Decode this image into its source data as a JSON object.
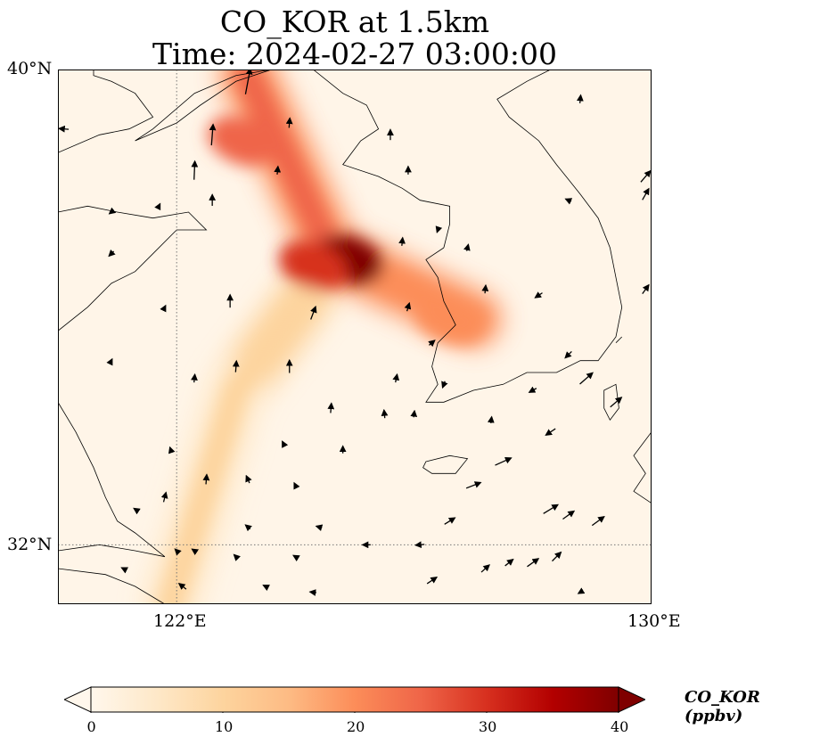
{
  "title": {
    "line1": "CO_KOR at 1.5km",
    "line2": "Time: 2024-02-27 03:00:00"
  },
  "map": {
    "extent": {
      "lon_min": 120,
      "lon_max": 130,
      "lat_min": 31,
      "lat_max": 40
    },
    "gridlines": {
      "lon": [
        122
      ],
      "lat": [
        32
      ]
    },
    "lat_labels": {
      "north": "40°N",
      "south": "32°N"
    },
    "lon_labels": {
      "west": "122°E",
      "east": "130°E"
    }
  },
  "colorbar": {
    "label": "CO_KOR (ppbv)",
    "min": 0,
    "max": 40,
    "ticks": [
      "0",
      "10",
      "20",
      "30",
      "40"
    ],
    "extend": "both",
    "colormap": "OrRd",
    "colors": [
      "#fff7ec",
      "#fee8c8",
      "#fdd49e",
      "#fdbb84",
      "#fc8d59",
      "#ef6548",
      "#d7301f",
      "#b30000",
      "#7f0000"
    ]
  },
  "plume_segments": [
    {
      "lon1": 123.2,
      "lat1": 39.9,
      "lon2": 124.6,
      "lat2": 36.9,
      "ppbv": 24
    },
    {
      "lon1": 124.6,
      "lat1": 36.9,
      "lon2": 127.0,
      "lat2": 35.8,
      "ppbv": 22
    },
    {
      "lon1": 124.2,
      "lat1": 36.2,
      "lon2": 123.0,
      "lat2": 34.6,
      "ppbv": 12
    },
    {
      "lon1": 123.0,
      "lat1": 34.6,
      "lon2": 121.9,
      "lat2": 31.0,
      "ppbv": 9
    }
  ],
  "plume_hotspots": [
    {
      "lon": 124.9,
      "lat": 36.8,
      "ppbv": 38
    },
    {
      "lon": 124.3,
      "lat": 36.7,
      "ppbv": 30
    },
    {
      "lon": 123.1,
      "lat": 38.8,
      "ppbv": 26
    },
    {
      "lon": 126.6,
      "lat": 35.8,
      "ppbv": 21
    }
  ],
  "wind_vectors": [
    {
      "lon": 123.2,
      "lat": 39.8,
      "u": 0.6,
      "v": 3.2
    },
    {
      "lon": 128.8,
      "lat": 39.5,
      "u": 0.1,
      "v": 1.0
    },
    {
      "lon": 120.1,
      "lat": 39.0,
      "u": -1.2,
      "v": 0.1
    },
    {
      "lon": 122.6,
      "lat": 38.9,
      "u": 0.2,
      "v": 2.6
    },
    {
      "lon": 123.9,
      "lat": 39.1,
      "u": 0.1,
      "v": 1.2
    },
    {
      "lon": 125.6,
      "lat": 38.9,
      "u": 0.0,
      "v": 1.3
    },
    {
      "lon": 122.3,
      "lat": 38.3,
      "u": 0.1,
      "v": 2.3
    },
    {
      "lon": 123.7,
      "lat": 38.3,
      "u": 0.1,
      "v": 1.0
    },
    {
      "lon": 125.9,
      "lat": 38.3,
      "u": 0.0,
      "v": 1.0
    },
    {
      "lon": 129.9,
      "lat": 38.2,
      "u": 1.2,
      "v": 1.4
    },
    {
      "lon": 129.9,
      "lat": 37.9,
      "u": 0.8,
      "v": 1.4
    },
    {
      "lon": 128.6,
      "lat": 37.8,
      "u": -0.7,
      "v": 0.3
    },
    {
      "lon": 120.9,
      "lat": 37.6,
      "u": -0.5,
      "v": -0.4
    },
    {
      "lon": 121.7,
      "lat": 37.7,
      "u": 0.3,
      "v": 0.6
    },
    {
      "lon": 122.6,
      "lat": 37.8,
      "u": 0.0,
      "v": 1.4
    },
    {
      "lon": 126.4,
      "lat": 37.3,
      "u": -0.2,
      "v": -0.6
    },
    {
      "lon": 125.8,
      "lat": 37.1,
      "u": 0.1,
      "v": 1.0
    },
    {
      "lon": 126.9,
      "lat": 37.0,
      "u": 0.2,
      "v": 0.8
    },
    {
      "lon": 120.9,
      "lat": 36.9,
      "u": -0.6,
      "v": -0.6
    },
    {
      "lon": 127.2,
      "lat": 36.3,
      "u": 0.1,
      "v": 1.0
    },
    {
      "lon": 128.1,
      "lat": 36.2,
      "u": -0.9,
      "v": -0.6
    },
    {
      "lon": 129.9,
      "lat": 36.3,
      "u": 0.8,
      "v": 1.1
    },
    {
      "lon": 121.8,
      "lat": 36.0,
      "u": 0.2,
      "v": 0.4
    },
    {
      "lon": 122.9,
      "lat": 36.1,
      "u": 0.0,
      "v": 1.6
    },
    {
      "lon": 124.3,
      "lat": 35.9,
      "u": 0.6,
      "v": 1.6
    },
    {
      "lon": 125.9,
      "lat": 36.0,
      "u": 0.3,
      "v": 1.0
    },
    {
      "lon": 126.3,
      "lat": 35.4,
      "u": 0.7,
      "v": 0.6
    },
    {
      "lon": 128.6,
      "lat": 35.2,
      "u": -0.8,
      "v": -0.8
    },
    {
      "lon": 120.9,
      "lat": 35.1,
      "u": 0.2,
      "v": 0.4
    },
    {
      "lon": 123.0,
      "lat": 35.0,
      "u": 0.1,
      "v": 1.4
    },
    {
      "lon": 123.9,
      "lat": 35.0,
      "u": 0.0,
      "v": 1.6
    },
    {
      "lon": 125.7,
      "lat": 34.8,
      "u": 0.2,
      "v": 1.0
    },
    {
      "lon": 128.9,
      "lat": 34.8,
      "u": 1.6,
      "v": 1.4
    },
    {
      "lon": 129.4,
      "lat": 34.4,
      "u": 1.4,
      "v": 1.2
    },
    {
      "lon": 122.3,
      "lat": 34.8,
      "u": 0.1,
      "v": 1.0
    },
    {
      "lon": 126.5,
      "lat": 34.7,
      "u": -0.3,
      "v": -0.8
    },
    {
      "lon": 128.0,
      "lat": 34.6,
      "u": -0.9,
      "v": -0.5
    },
    {
      "lon": 124.6,
      "lat": 34.3,
      "u": 0.1,
      "v": 1.2
    },
    {
      "lon": 125.5,
      "lat": 34.2,
      "u": -0.1,
      "v": 1.0
    },
    {
      "lon": 126.0,
      "lat": 34.2,
      "u": 0.1,
      "v": 0.8
    },
    {
      "lon": 127.3,
      "lat": 34.1,
      "u": 0.1,
      "v": 0.8
    },
    {
      "lon": 128.3,
      "lat": 33.9,
      "u": -1.2,
      "v": -0.8
    },
    {
      "lon": 121.9,
      "lat": 33.6,
      "u": -0.2,
      "v": 0.6
    },
    {
      "lon": 123.8,
      "lat": 33.7,
      "u": -0.3,
      "v": 0.6
    },
    {
      "lon": 124.8,
      "lat": 33.6,
      "u": 0.0,
      "v": 0.9
    },
    {
      "lon": 127.5,
      "lat": 33.4,
      "u": 2.0,
      "v": 0.9
    },
    {
      "lon": 122.5,
      "lat": 33.1,
      "u": 0.1,
      "v": 1.2
    },
    {
      "lon": 123.2,
      "lat": 33.1,
      "u": -0.4,
      "v": 0.9
    },
    {
      "lon": 124.0,
      "lat": 33.0,
      "u": -0.3,
      "v": 0.6
    },
    {
      "lon": 127.0,
      "lat": 33.0,
      "u": 1.8,
      "v": 0.7
    },
    {
      "lon": 128.3,
      "lat": 32.6,
      "u": 1.8,
      "v": 1.1
    },
    {
      "lon": 128.6,
      "lat": 32.5,
      "u": 1.4,
      "v": 1.0
    },
    {
      "lon": 129.1,
      "lat": 32.4,
      "u": 1.5,
      "v": 1.1
    },
    {
      "lon": 121.8,
      "lat": 32.8,
      "u": 0.3,
      "v": 1.2
    },
    {
      "lon": 123.2,
      "lat": 32.3,
      "u": -0.6,
      "v": 0.5
    },
    {
      "lon": 124.4,
      "lat": 32.3,
      "u": -0.7,
      "v": 0.2
    },
    {
      "lon": 126.6,
      "lat": 32.4,
      "u": 1.3,
      "v": 0.8
    },
    {
      "lon": 121.3,
      "lat": 32.6,
      "u": -0.3,
      "v": 0.2
    },
    {
      "lon": 125.2,
      "lat": 32.0,
      "u": -1.0,
      "v": 0.0
    },
    {
      "lon": 126.1,
      "lat": 32.0,
      "u": -1.1,
      "v": -0.1
    },
    {
      "lon": 122.3,
      "lat": 31.9,
      "u": -0.6,
      "v": 0.4
    },
    {
      "lon": 122.0,
      "lat": 31.9,
      "u": -0.4,
      "v": 0.4
    },
    {
      "lon": 123.0,
      "lat": 31.8,
      "u": -0.5,
      "v": 0.5
    },
    {
      "lon": 124.0,
      "lat": 31.8,
      "u": -0.5,
      "v": 0.3
    },
    {
      "lon": 127.6,
      "lat": 31.7,
      "u": 1.0,
      "v": 0.8
    },
    {
      "lon": 128.0,
      "lat": 31.7,
      "u": 1.4,
      "v": 1.0
    },
    {
      "lon": 128.4,
      "lat": 31.8,
      "u": 1.1,
      "v": 1.1
    },
    {
      "lon": 121.1,
      "lat": 31.6,
      "u": -0.4,
      "v": 0.2
    },
    {
      "lon": 126.3,
      "lat": 31.4,
      "u": 1.2,
      "v": 0.8
    },
    {
      "lon": 122.1,
      "lat": 31.3,
      "u": -0.9,
      "v": 0.7
    },
    {
      "lon": 123.5,
      "lat": 31.3,
      "u": -0.6,
      "v": 0.3
    },
    {
      "lon": 127.2,
      "lat": 31.6,
      "u": 1.0,
      "v": 0.9
    },
    {
      "lon": 124.3,
      "lat": 31.2,
      "u": -0.8,
      "v": 0.1
    },
    {
      "lon": 128.8,
      "lat": 31.2,
      "u": -0.5,
      "v": -0.3
    }
  ],
  "coastlines": [
    {
      "name": "china-north",
      "points": [
        [
          120,
          35.6
        ],
        [
          120.5,
          36.0
        ],
        [
          120.9,
          36.4
        ],
        [
          121.3,
          36.6
        ],
        [
          121.6,
          36.9
        ],
        [
          122.0,
          37.3
        ],
        [
          122.5,
          37.3
        ],
        [
          122.2,
          37.6
        ],
        [
          121.6,
          37.5
        ],
        [
          121.0,
          37.6
        ],
        [
          120.5,
          37.7
        ],
        [
          120,
          37.6
        ]
      ]
    },
    {
      "name": "china-bohai",
      "points": [
        [
          120,
          38.6
        ],
        [
          120.7,
          38.9
        ],
        [
          121.2,
          39.0
        ],
        [
          121.6,
          39.2
        ],
        [
          121.3,
          39.6
        ],
        [
          120.9,
          39.8
        ],
        [
          120.6,
          39.9
        ],
        [
          120.6,
          40.0
        ]
      ]
    },
    {
      "name": "liaodong",
      "points": [
        [
          123.6,
          40.0
        ],
        [
          123.0,
          39.8
        ],
        [
          122.4,
          39.4
        ],
        [
          122.0,
          39.1
        ],
        [
          121.3,
          38.8
        ],
        [
          121.6,
          39.0
        ],
        [
          122.3,
          39.6
        ],
        [
          123.0,
          39.9
        ],
        [
          123.6,
          40.0
        ]
      ]
    },
    {
      "name": "korea-nw",
      "points": [
        [
          124.3,
          40.0
        ],
        [
          124.8,
          39.6
        ],
        [
          125.2,
          39.4
        ],
        [
          125.4,
          39.0
        ],
        [
          125.1,
          38.8
        ],
        [
          124.8,
          38.4
        ],
        [
          125.4,
          38.2
        ],
        [
          125.8,
          38.0
        ],
        [
          126.1,
          37.8
        ],
        [
          126.6,
          37.7
        ],
        [
          126.6,
          37.4
        ],
        [
          126.5,
          37.0
        ]
      ]
    },
    {
      "name": "korea-west",
      "points": [
        [
          126.5,
          37.0
        ],
        [
          126.2,
          36.8
        ],
        [
          126.4,
          36.5
        ],
        [
          126.5,
          36.1
        ],
        [
          126.7,
          35.7
        ],
        [
          126.4,
          35.4
        ],
        [
          126.3,
          35.0
        ],
        [
          126.4,
          34.7
        ],
        [
          126.2,
          34.4
        ],
        [
          126.5,
          34.4
        ],
        [
          127.0,
          34.6
        ],
        [
          127.5,
          34.7
        ],
        [
          127.9,
          34.9
        ],
        [
          128.4,
          34.9
        ],
        [
          128.8,
          35.1
        ],
        [
          129.1,
          35.1
        ],
        [
          129.4,
          35.5
        ],
        [
          129.5,
          36.0
        ],
        [
          129.4,
          36.5
        ],
        [
          129.3,
          37.0
        ],
        [
          129.1,
          37.5
        ],
        [
          128.8,
          37.9
        ],
        [
          128.4,
          38.4
        ],
        [
          128.1,
          38.8
        ],
        [
          127.6,
          39.2
        ],
        [
          127.4,
          39.5
        ],
        [
          127.9,
          39.8
        ],
        [
          128.3,
          40.0
        ]
      ]
    },
    {
      "name": "korea-se-coast",
      "points": [
        [
          129.4,
          35.4
        ],
        [
          129.5,
          35.5
        ]
      ]
    },
    {
      "name": "jeju",
      "closed": true,
      "points": [
        [
          126.2,
          33.4
        ],
        [
          126.6,
          33.5
        ],
        [
          126.9,
          33.45
        ],
        [
          126.7,
          33.2
        ],
        [
          126.3,
          33.2
        ],
        [
          126.15,
          33.3
        ]
      ]
    },
    {
      "name": "tsushima",
      "closed": true,
      "points": [
        [
          129.2,
          34.6
        ],
        [
          129.4,
          34.7
        ],
        [
          129.45,
          34.3
        ],
        [
          129.3,
          34.1
        ],
        [
          129.2,
          34.3
        ]
      ]
    },
    {
      "name": "kyushu",
      "points": [
        [
          130,
          33.9
        ],
        [
          129.7,
          33.5
        ],
        [
          129.9,
          33.2
        ],
        [
          129.7,
          32.9
        ],
        [
          130,
          32.7
        ]
      ]
    },
    {
      "name": "china-east",
      "points": [
        [
          120,
          34.4
        ],
        [
          120.3,
          33.9
        ],
        [
          120.6,
          33.3
        ],
        [
          120.8,
          32.8
        ],
        [
          121.0,
          32.4
        ],
        [
          121.3,
          32.2
        ],
        [
          121.8,
          31.8
        ],
        [
          121.3,
          31.9
        ],
        [
          120.7,
          32.0
        ],
        [
          120.0,
          31.9
        ]
      ]
    },
    {
      "name": "yangtze",
      "points": [
        [
          120.0,
          31.6
        ],
        [
          120.8,
          31.5
        ],
        [
          121.3,
          31.3
        ],
        [
          121.8,
          31.0
        ],
        [
          121.9,
          30.9
        ]
      ]
    }
  ]
}
